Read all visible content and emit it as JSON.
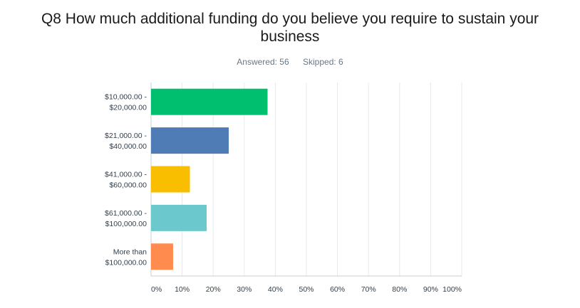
{
  "header": {
    "title": "Q8 How much additional funding do you believe you require to sustain your business",
    "answered_label": "Answered: 56",
    "skipped_label": "Skipped: 6"
  },
  "chart_data": {
    "type": "bar",
    "orientation": "horizontal",
    "categories": [
      [
        "$10,000.00 -",
        "$20,000.00"
      ],
      [
        "$21,000.00 -",
        "$40,000.00"
      ],
      [
        "$41,000.00 -",
        "$60,000.00"
      ],
      [
        "$61,000.00 -",
        "$100,000.00"
      ],
      [
        "More than",
        "$100,000.00"
      ]
    ],
    "values": [
      37.5,
      25.0,
      12.5,
      17.9,
      7.1
    ],
    "colors": [
      "#00bf6f",
      "#507cb6",
      "#f9be00",
      "#6bc8cd",
      "#ff8b4f"
    ],
    "xlim": [
      0,
      100
    ],
    "xticks": [
      "0%",
      "10%",
      "20%",
      "30%",
      "40%",
      "50%",
      "60%",
      "70%",
      "80%",
      "90%",
      "100%"
    ],
    "grid": true,
    "title": "",
    "xlabel": "",
    "ylabel": ""
  }
}
